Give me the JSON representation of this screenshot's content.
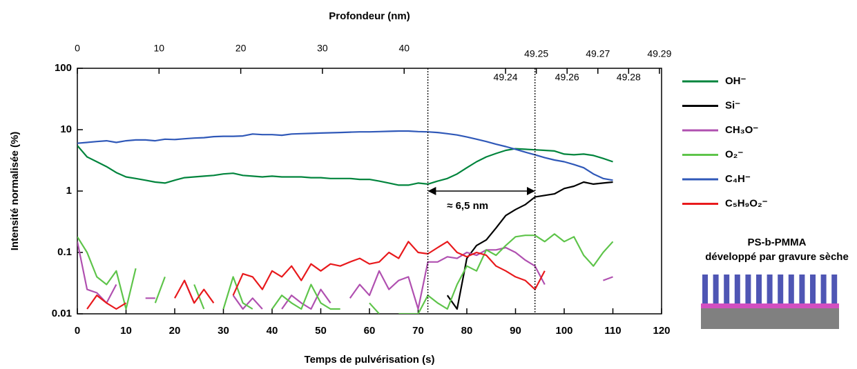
{
  "chart_data": {
    "type": "line",
    "x_label": "Temps de pulvérisation (s)",
    "y_label": "Intensité normalisée (%)",
    "x2_label": "Profondeur (nm)",
    "xlim": [
      0,
      120
    ],
    "xticks": [
      0,
      10,
      20,
      30,
      40,
      50,
      60,
      70,
      80,
      90,
      100,
      110,
      120
    ],
    "ylim": [
      0.01,
      100
    ],
    "yticks": [
      0.01,
      0.1,
      1,
      10,
      100
    ],
    "log_y": true,
    "x2lim": [
      0,
      49.7
    ],
    "x2ticks": [
      0,
      10,
      20,
      30,
      40
    ],
    "x2lim_fine": [
      49.2328,
      49.2907
    ],
    "x2ticks_fine": [
      49.24,
      49.25,
      49.26,
      49.27,
      49.28,
      49.29
    ],
    "x": [
      0,
      2,
      4,
      6,
      8,
      10,
      12,
      14,
      16,
      18,
      20,
      22,
      24,
      26,
      28,
      30,
      32,
      34,
      36,
      38,
      40,
      42,
      44,
      46,
      48,
      50,
      52,
      54,
      56,
      58,
      60,
      62,
      64,
      66,
      68,
      70,
      72,
      74,
      76,
      78,
      80,
      82,
      84,
      86,
      88,
      90,
      92,
      94,
      96,
      98,
      100,
      102,
      104,
      106,
      108,
      110
    ],
    "series": [
      {
        "name": "OH⁻",
        "color": "#00843c",
        "values": [
          5.5,
          3.6,
          3.0,
          2.5,
          2.0,
          1.7,
          1.6,
          1.5,
          1.4,
          1.35,
          1.5,
          1.65,
          1.7,
          1.75,
          1.8,
          1.9,
          1.95,
          1.8,
          1.75,
          1.7,
          1.75,
          1.7,
          1.7,
          1.7,
          1.65,
          1.65,
          1.6,
          1.6,
          1.6,
          1.55,
          1.55,
          1.45,
          1.35,
          1.25,
          1.25,
          1.35,
          1.3,
          1.45,
          1.6,
          1.9,
          2.4,
          3.0,
          3.6,
          4.1,
          4.6,
          4.9,
          4.8,
          4.7,
          4.6,
          4.5,
          4.0,
          3.9,
          4.0,
          3.8,
          3.4,
          3.0
        ]
      },
      {
        "name": "Si⁻",
        "color": "#000000",
        "values": [
          null,
          null,
          null,
          null,
          null,
          null,
          null,
          null,
          null,
          null,
          null,
          null,
          null,
          null,
          null,
          null,
          null,
          null,
          null,
          null,
          null,
          null,
          null,
          null,
          null,
          null,
          null,
          null,
          null,
          null,
          null,
          null,
          null,
          null,
          null,
          null,
          null,
          null,
          0.02,
          0.012,
          0.08,
          0.13,
          0.16,
          0.25,
          0.4,
          0.5,
          0.6,
          0.8,
          0.85,
          0.9,
          1.1,
          1.2,
          1.4,
          1.3,
          1.35,
          1.4
        ]
      },
      {
        "name": "CH₃O⁻",
        "color": "#b050b0",
        "values": [
          0.15,
          0.025,
          0.022,
          0.015,
          0.03,
          null,
          null,
          0.018,
          0.018,
          null,
          null,
          0.035,
          0.015,
          null,
          0.012,
          null,
          0.02,
          0.012,
          0.018,
          0.012,
          null,
          0.012,
          0.02,
          0.015,
          0.012,
          0.025,
          0.015,
          null,
          0.018,
          0.03,
          0.02,
          0.05,
          0.025,
          0.035,
          0.04,
          0.012,
          0.07,
          0.07,
          0.085,
          0.08,
          0.1,
          0.09,
          0.11,
          0.11,
          0.12,
          0.1,
          0.075,
          0.06,
          0.03,
          null,
          0.04,
          null,
          null,
          null,
          0.035,
          0.04
        ]
      },
      {
        "name": "O₂⁻",
        "color": "#5ec44a",
        "values": [
          0.18,
          0.1,
          0.04,
          0.03,
          0.05,
          0.012,
          0.055,
          null,
          0.015,
          0.04,
          null,
          null,
          0.03,
          0.012,
          null,
          0.012,
          0.04,
          0.015,
          0.012,
          null,
          0.012,
          0.02,
          0.015,
          0.012,
          0.03,
          0.015,
          0.012,
          0.012,
          null,
          null,
          0.015,
          0.01,
          null,
          0.01,
          0.01,
          0.01,
          0.02,
          0.015,
          0.012,
          0.03,
          0.06,
          0.05,
          0.11,
          0.09,
          0.13,
          0.18,
          0.19,
          0.19,
          0.15,
          0.2,
          0.15,
          0.18,
          0.09,
          0.06,
          0.1,
          0.15
        ]
      },
      {
        "name": "C₄H⁻",
        "color": "#2f58b8",
        "values": [
          6.0,
          6.2,
          6.4,
          6.6,
          6.2,
          6.6,
          6.8,
          6.8,
          6.6,
          7.0,
          6.9,
          7.1,
          7.3,
          7.4,
          7.7,
          7.8,
          7.8,
          7.9,
          8.5,
          8.3,
          8.3,
          8.1,
          8.5,
          8.6,
          8.7,
          8.8,
          8.9,
          9.0,
          9.1,
          9.2,
          9.2,
          9.3,
          9.4,
          9.5,
          9.5,
          9.3,
          9.2,
          9.0,
          8.6,
          8.2,
          7.6,
          7.0,
          6.4,
          5.8,
          5.3,
          4.8,
          4.3,
          3.9,
          3.5,
          3.2,
          3.0,
          2.7,
          2.4,
          1.9,
          1.6,
          1.5
        ]
      },
      {
        "name": "C₅H₉O₂⁻",
        "color": "#e8191c",
        "values": [
          null,
          0.012,
          0.02,
          0.015,
          0.012,
          0.015,
          null,
          null,
          null,
          null,
          0.018,
          0.035,
          0.015,
          0.025,
          0.015,
          null,
          0.02,
          0.045,
          0.04,
          0.025,
          0.05,
          0.04,
          0.06,
          0.035,
          0.065,
          0.05,
          0.065,
          0.06,
          0.07,
          0.08,
          0.065,
          0.07,
          0.1,
          0.08,
          0.15,
          0.1,
          0.095,
          0.12,
          0.15,
          0.1,
          0.085,
          0.1,
          0.09,
          0.06,
          0.05,
          0.04,
          0.035,
          0.025,
          0.05,
          null,
          0.02,
          null,
          null,
          null,
          null,
          null
        ]
      }
    ],
    "annotation": {
      "text": "≈ 6,5 nm",
      "x_from": 72,
      "x_to": 94,
      "y": 1
    },
    "inset_title": "PS-b-PMMA",
    "inset_subtitle": "développé par gravure sèche"
  }
}
